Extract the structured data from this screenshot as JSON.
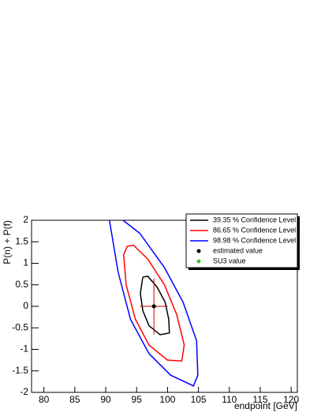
{
  "chart_data": {
    "type": "contour",
    "x_label": "endpoint [GeV]",
    "y_label": "P(n) + P(f)",
    "xlim": [
      78,
      121
    ],
    "ylim": [
      -2,
      2
    ],
    "xticks": [
      80,
      85,
      90,
      95,
      100,
      105,
      110,
      115,
      120
    ],
    "yticks": [
      -2,
      -1.5,
      -1,
      -0.5,
      0,
      0.5,
      1,
      1.5,
      2
    ],
    "legend": "top-right",
    "series": [
      {
        "name": "39.35 % Confidence Level",
        "kind": "line",
        "color": "#000000",
        "x": [
          96.0,
          95.6,
          96.0,
          97.0,
          98.8,
          100.3,
          100.2,
          99.6,
          98.3,
          96.8,
          96.0
        ],
        "y": [
          0.68,
          0.3,
          -0.1,
          -0.45,
          -0.66,
          -0.62,
          -0.3,
          0.1,
          0.45,
          0.7,
          0.68
        ]
      },
      {
        "name": "86.65 % Confidence Level",
        "kind": "line",
        "color": "#ff0000",
        "x": [
          93.5,
          92.9,
          93.3,
          94.8,
          97.0,
          100.0,
          102.3,
          102.7,
          101.5,
          99.5,
          96.8,
          94.5,
          93.5
        ],
        "y": [
          1.4,
          1.2,
          0.5,
          -0.3,
          -0.9,
          -1.25,
          -1.27,
          -0.9,
          -0.2,
          0.5,
          1.1,
          1.42,
          1.4
        ]
      },
      {
        "name": "98.98 % Confidence Level",
        "kind": "line",
        "color": "#0000ff",
        "x": [
          90.6,
          92.0,
          94.0,
          97.0,
          100.5,
          104.2,
          104.9,
          104.7,
          102.5,
          99.5,
          95.5,
          92.8
        ],
        "y": [
          2.0,
          0.8,
          -0.3,
          -1.1,
          -1.6,
          -1.85,
          -1.6,
          -0.8,
          0.1,
          0.9,
          1.7,
          2.0
        ]
      },
      {
        "name": "SU3 value",
        "kind": "marker",
        "color": "#33cc33",
        "x": [
          97.8
        ],
        "y": [
          0
        ]
      },
      {
        "name": "estimated value",
        "kind": "marker",
        "color": "#000000",
        "x": [
          97.8
        ],
        "y": [
          0
        ],
        "xerr": [
          2.25
        ],
        "yerr": [
          0.65
        ]
      }
    ],
    "legend_order": [
      0,
      1,
      2,
      4,
      3
    ]
  }
}
